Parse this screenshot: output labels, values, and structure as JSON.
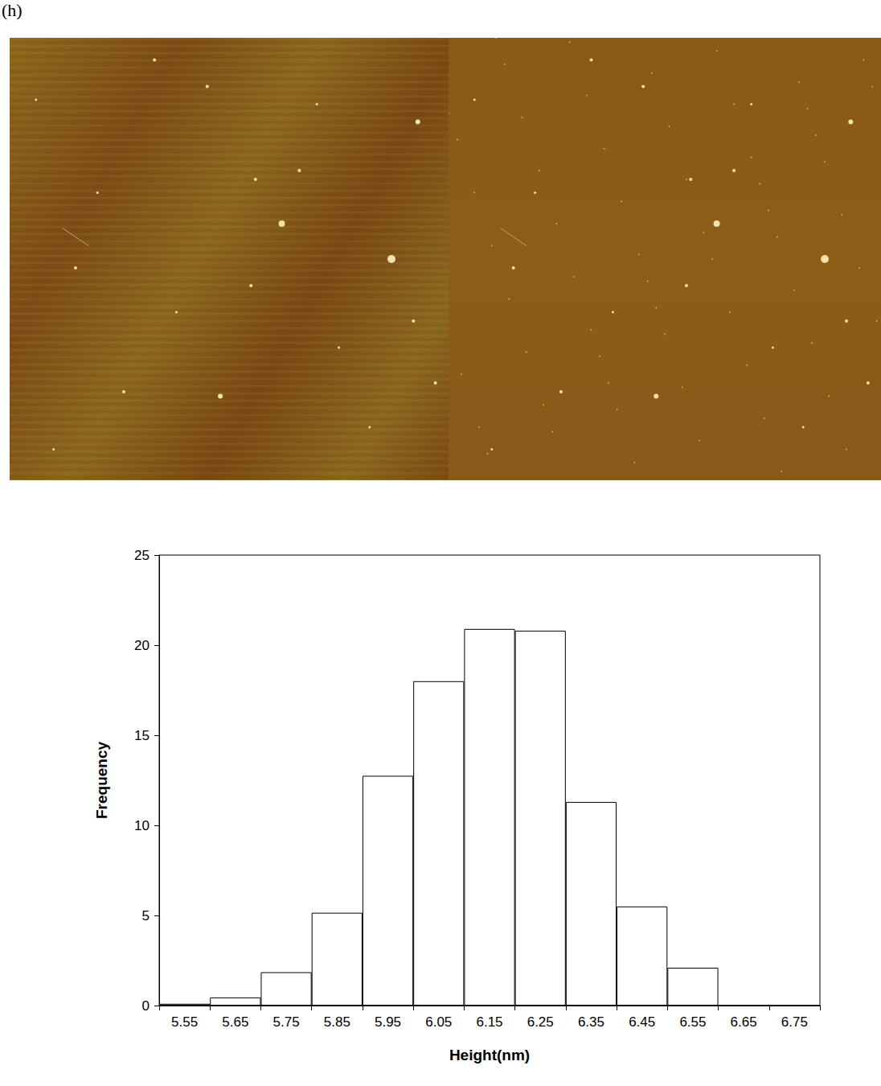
{
  "panel_label": "(h)",
  "chart_data": {
    "type": "bar",
    "x_label": "Height(nm)",
    "y_label": "Frequency",
    "categories": [
      "5.55",
      "5.65",
      "5.75",
      "5.85",
      "5.95",
      "6.05",
      "6.15",
      "6.25",
      "6.35",
      "6.45",
      "6.55",
      "6.65",
      "6.75"
    ],
    "values": [
      0.1,
      0.45,
      1.85,
      5.15,
      12.75,
      18.0,
      20.9,
      20.8,
      11.3,
      5.5,
      2.1,
      0,
      0
    ],
    "color": "#ffffff",
    "ylim": [
      0,
      25
    ],
    "yticks": [
      0,
      5,
      10,
      15,
      20,
      25
    ],
    "grid": false
  }
}
